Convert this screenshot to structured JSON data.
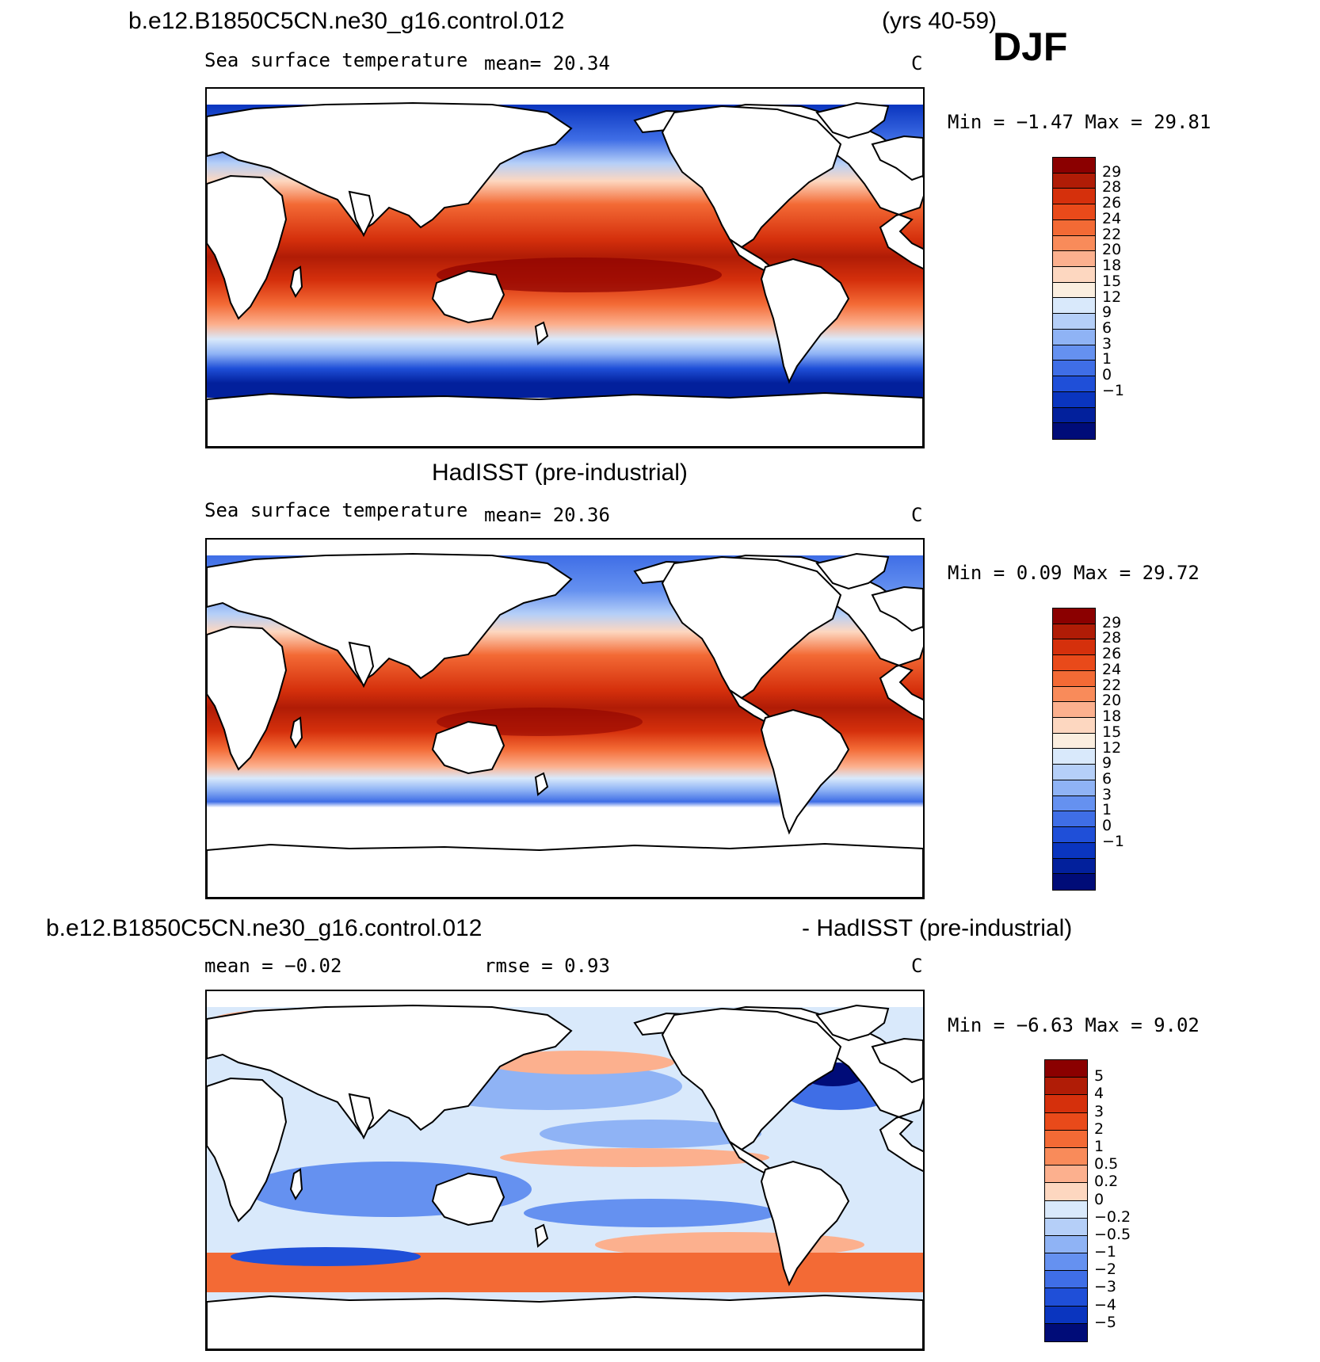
{
  "season": "DJF",
  "panels": [
    {
      "id": "model",
      "title_left": "b.e12.B1850C5CN.ne30_g16.control.012",
      "title_right": "(yrs 40-59)",
      "variable": "Sea surface temperature",
      "stat": "mean=   20.34",
      "units": "C",
      "minmax": "Min =   −1.47 Max =   29.81",
      "colorbar": {
        "labels": [
          "29",
          "28",
          "26",
          "24",
          "22",
          "20",
          "18",
          "15",
          "12",
          "9",
          "6",
          "3",
          "1",
          "0",
          "−1"
        ],
        "colors": [
          "#8b0000",
          "#b01c06",
          "#d5300c",
          "#e94a1a",
          "#f36a35",
          "#f98b5a",
          "#fcb08e",
          "#fdd7c0",
          "#fbeedf",
          "#d9e9fb",
          "#b5cff8",
          "#8fb3f5",
          "#6591f0",
          "#3f6ee6",
          "#1f4fd8",
          "#0a35bf",
          "#02209c",
          "#000c78"
        ]
      }
    },
    {
      "id": "obs",
      "title_center": "HadISST (pre-industrial)",
      "variable": "Sea surface temperature",
      "stat": "mean=   20.36",
      "units": "C",
      "minmax": "Min =    0.09 Max =   29.72",
      "colorbar": {
        "labels": [
          "29",
          "28",
          "26",
          "24",
          "22",
          "20",
          "18",
          "15",
          "12",
          "9",
          "6",
          "3",
          "1",
          "0",
          "−1"
        ],
        "colors": [
          "#8b0000",
          "#b01c06",
          "#d5300c",
          "#e94a1a",
          "#f36a35",
          "#f98b5a",
          "#fcb08e",
          "#fdd7c0",
          "#fbeedf",
          "#d9e9fb",
          "#b5cff8",
          "#8fb3f5",
          "#6591f0",
          "#3f6ee6",
          "#1f4fd8",
          "#0a35bf",
          "#02209c",
          "#000c78"
        ]
      }
    },
    {
      "id": "diff",
      "title_left": "b.e12.B1850C5CN.ne30_g16.control.012",
      "title_right": "- HadISST (pre-industrial)",
      "stat_mean": "mean =   −0.02",
      "stat_rmse": "rmse =    0.93",
      "units": "C",
      "minmax": "Min =   −6.63 Max =    9.02",
      "colorbar": {
        "labels": [
          "5",
          "4",
          "3",
          "2",
          "1",
          "0.5",
          "0.2",
          "0",
          "−0.2",
          "−0.5",
          "−1",
          "−2",
          "−3",
          "−4",
          "−5"
        ],
        "colors": [
          "#8b0000",
          "#b01c06",
          "#d5300c",
          "#e94a1a",
          "#f36a35",
          "#f98b5a",
          "#fcb08e",
          "#fdd7c0",
          "#d9e9fb",
          "#b5cff8",
          "#8fb3f5",
          "#6591f0",
          "#3f6ee6",
          "#1f4fd8",
          "#0a35bf",
          "#000c78"
        ]
      }
    }
  ]
}
